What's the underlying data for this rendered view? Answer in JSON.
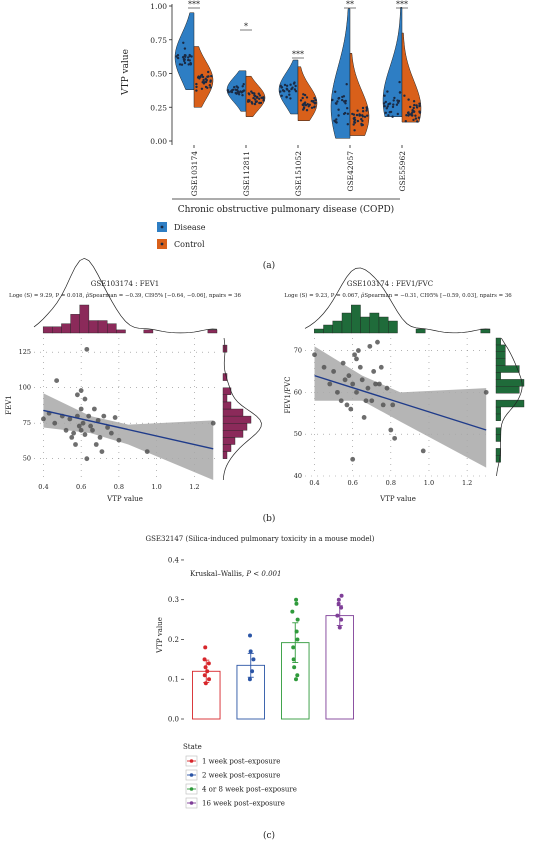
{
  "panel_a": {
    "chart_data": {
      "type": "violin",
      "ylabel": "VTP value",
      "xlabel": "Chronic obstructive pulmonary disease (COPD)",
      "ylim": [
        0,
        1
      ],
      "yticks": [
        "0.00",
        "0.25",
        "0.50",
        "0.75",
        "1.00"
      ],
      "categories": [
        "GSE103174",
        "GSE112811",
        "GSE151052",
        "GSE42057",
        "GSE55962"
      ],
      "significance": [
        "***",
        "*",
        "***",
        "**",
        "***"
      ],
      "series": [
        {
          "name": "Disease",
          "medians": [
            0.62,
            0.38,
            0.38,
            0.25,
            0.3
          ],
          "min": [
            0.38,
            0.22,
            0.2,
            0.02,
            0.18
          ],
          "max": [
            0.95,
            0.52,
            0.6,
            0.98,
            0.99
          ]
        },
        {
          "name": "Control",
          "medians": [
            0.45,
            0.32,
            0.28,
            0.18,
            0.24
          ],
          "min": [
            0.25,
            0.18,
            0.15,
            0.04,
            0.14
          ],
          "max": [
            0.7,
            0.48,
            0.55,
            0.65,
            0.8
          ]
        }
      ],
      "legend": [
        "Disease",
        "Control"
      ],
      "legend_placement": "bottom-left"
    },
    "colors": {
      "disease": "#2e7ec4",
      "control": "#d9601a"
    },
    "caption": "(a)"
  },
  "panel_b": {
    "left": {
      "title": "GSE103174 : FEV1",
      "stats": "Loge (S) = 9.29, P = 0.018, ρ̂Spearman = −0.39, CI95% [−0.64, −0.06], npairs = 36",
      "chart_data": {
        "type": "scatter",
        "xlabel": "VTP value",
        "ylabel": "FEV1",
        "xlim": [
          0.35,
          1.32
        ],
        "ylim": [
          35,
          135
        ],
        "xticks": [
          "0.4",
          "0.6",
          "0.8",
          "1.0",
          "1.2"
        ],
        "yticks": [
          "50",
          "75",
          "100",
          "125"
        ],
        "points": [
          [
            0.4,
            78
          ],
          [
            0.43,
            82
          ],
          [
            0.46,
            75
          ],
          [
            0.47,
            105
          ],
          [
            0.5,
            80
          ],
          [
            0.52,
            70
          ],
          [
            0.54,
            78
          ],
          [
            0.55,
            65
          ],
          [
            0.56,
            68
          ],
          [
            0.57,
            60
          ],
          [
            0.58,
            95
          ],
          [
            0.58,
            80
          ],
          [
            0.59,
            73
          ],
          [
            0.6,
            98
          ],
          [
            0.6,
            85
          ],
          [
            0.6,
            70
          ],
          [
            0.61,
            75
          ],
          [
            0.62,
            92
          ],
          [
            0.62,
            67
          ],
          [
            0.63,
            127
          ],
          [
            0.63,
            50
          ],
          [
            0.64,
            80
          ],
          [
            0.65,
            73
          ],
          [
            0.66,
            70
          ],
          [
            0.67,
            85
          ],
          [
            0.68,
            60
          ],
          [
            0.69,
            77
          ],
          [
            0.7,
            65
          ],
          [
            0.71,
            55
          ],
          [
            0.72,
            80
          ],
          [
            0.74,
            72
          ],
          [
            0.76,
            68
          ],
          [
            0.78,
            79
          ],
          [
            0.8,
            63
          ],
          [
            0.95,
            55
          ],
          [
            1.3,
            75
          ]
        ],
        "trend": [
          [
            0.4,
            84
          ],
          [
            1.3,
            57
          ]
        ],
        "ci_band": [
          [
            0.4,
            96,
            72
          ],
          [
            0.65,
            80,
            68
          ],
          [
            0.85,
            74,
            60
          ],
          [
            1.3,
            77,
            35
          ]
        ]
      },
      "colors": {
        "hist": "#8b2a5a"
      }
    },
    "right": {
      "title": "GSE103174 : FEV1/FVC",
      "stats": "Loge (S) = 9.23, P = 0.067, ρ̂Spearman = −0.31, CI95% [−0.59, 0.03], npairs = 36",
      "chart_data": {
        "type": "scatter",
        "xlabel": "VTP value",
        "ylabel": "FEV1/FVC",
        "xlim": [
          0.35,
          1.32
        ],
        "ylim": [
          40,
          73
        ],
        "xticks": [
          "0.4",
          "0.6",
          "0.8",
          "1.0",
          "1.2"
        ],
        "yticks": [
          "40",
          "50",
          "60",
          "70"
        ],
        "points": [
          [
            0.4,
            69
          ],
          [
            0.45,
            66
          ],
          [
            0.48,
            62
          ],
          [
            0.5,
            65
          ],
          [
            0.52,
            60
          ],
          [
            0.54,
            58
          ],
          [
            0.55,
            67
          ],
          [
            0.56,
            63
          ],
          [
            0.57,
            57
          ],
          [
            0.58,
            64
          ],
          [
            0.59,
            56
          ],
          [
            0.6,
            44
          ],
          [
            0.6,
            62
          ],
          [
            0.61,
            69
          ],
          [
            0.62,
            68
          ],
          [
            0.62,
            60
          ],
          [
            0.63,
            70
          ],
          [
            0.64,
            66
          ],
          [
            0.65,
            63
          ],
          [
            0.66,
            54
          ],
          [
            0.67,
            58
          ],
          [
            0.68,
            61
          ],
          [
            0.69,
            71
          ],
          [
            0.7,
            58
          ],
          [
            0.71,
            65
          ],
          [
            0.72,
            62
          ],
          [
            0.73,
            72
          ],
          [
            0.74,
            62
          ],
          [
            0.75,
            66
          ],
          [
            0.76,
            57
          ],
          [
            0.78,
            61
          ],
          [
            0.8,
            51
          ],
          [
            0.81,
            57
          ],
          [
            0.82,
            49
          ],
          [
            0.97,
            46
          ],
          [
            1.3,
            60
          ]
        ],
        "trend": [
          [
            0.4,
            64
          ],
          [
            1.3,
            51
          ]
        ],
        "ci_band": [
          [
            0.4,
            71,
            58
          ],
          [
            0.65,
            64,
            58
          ],
          [
            0.85,
            60,
            53
          ],
          [
            1.3,
            61,
            42
          ]
        ]
      },
      "colors": {
        "hist": "#1f6b3a"
      }
    },
    "caption": "(b)"
  },
  "panel_c": {
    "title": "GSE32147 (Silica-induced pulmonary toxicity in a mouse model)",
    "annotation_prefix": "Kruskal–Wallis, ",
    "annotation_p": "P < 0.001",
    "chart_data": {
      "type": "bar",
      "ylabel": "VTP value",
      "ylim": [
        0,
        0.42
      ],
      "yticks": [
        "0.0",
        "0.1",
        "0.2",
        "0.3",
        "0.4"
      ],
      "categories": [
        "1 week post–exposure",
        "2 week post–exposure",
        "4 or 8 week post–exposure",
        "16 week post–exposure"
      ],
      "values": [
        0.12,
        0.135,
        0.192,
        0.26
      ],
      "errors": [
        0.028,
        0.03,
        0.05,
        0.025
      ],
      "points": [
        [
          0.18,
          0.15,
          0.14,
          0.13,
          0.12,
          0.11,
          0.1,
          0.09
        ],
        [
          0.21,
          0.17,
          0.15,
          0.12,
          0.1
        ],
        [
          0.3,
          0.29,
          0.27,
          0.25,
          0.22,
          0.2,
          0.18,
          0.15,
          0.13,
          0.11,
          0.1
        ],
        [
          0.31,
          0.3,
          0.29,
          0.28,
          0.26,
          0.25,
          0.23
        ]
      ]
    },
    "colors": [
      "#d7262b",
      "#2b55a6",
      "#2f9a3b",
      "#7f3f98"
    ],
    "legend_title": "State",
    "legend": [
      "1 week post–exposure",
      "2 week post–exposure",
      "4 or 8 week post–exposure",
      "16 week post–exposure"
    ],
    "caption": "(c)"
  }
}
